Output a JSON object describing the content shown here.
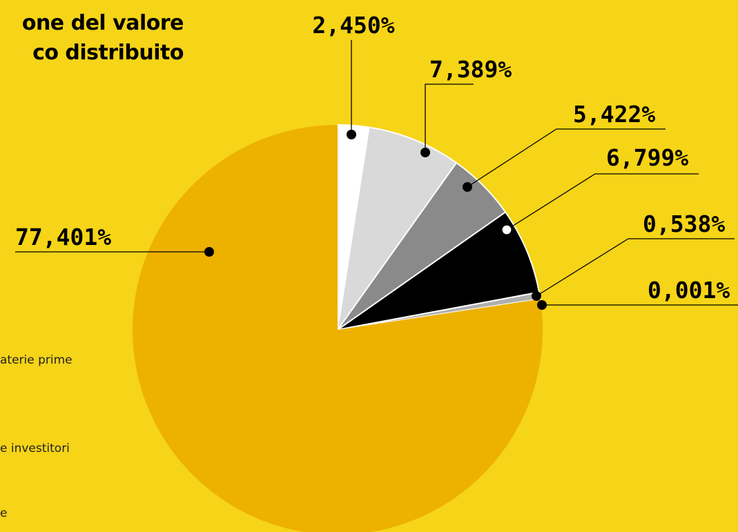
{
  "title": {
    "line1": "one del valore",
    "line2": "co distribuito"
  },
  "legend_fragments": [
    "aterie prime",
    "e investitori",
    "e"
  ],
  "colors": {
    "background": "#F6D417",
    "slice_main": "#EDB100",
    "slice_white": "#FFFFFF",
    "slice_lightgray": "#D9D9D9",
    "slice_gray": "#8A8A8A",
    "slice_black": "#000000",
    "slice_darkgray": "#6A6A6A",
    "slice_tiny": "#B0B0B0"
  },
  "chart_data": {
    "type": "pie",
    "title": "",
    "slices": [
      {
        "label": "2,450%",
        "value": 2.45,
        "color": "#FFFFFF"
      },
      {
        "label": "7,389%",
        "value": 7.389,
        "color": "#D9D9D9"
      },
      {
        "label": "5,422%",
        "value": 5.422,
        "color": "#8A8A8A"
      },
      {
        "label": "6,799%",
        "value": 6.799,
        "color": "#000000"
      },
      {
        "label": "0,538%",
        "value": 0.538,
        "color": "#B0B0B0"
      },
      {
        "label": "0,001%",
        "value": 0.001,
        "color": "#6A6A6A"
      },
      {
        "label": "77,401%",
        "value": 77.401,
        "color": "#EDB100"
      }
    ]
  }
}
